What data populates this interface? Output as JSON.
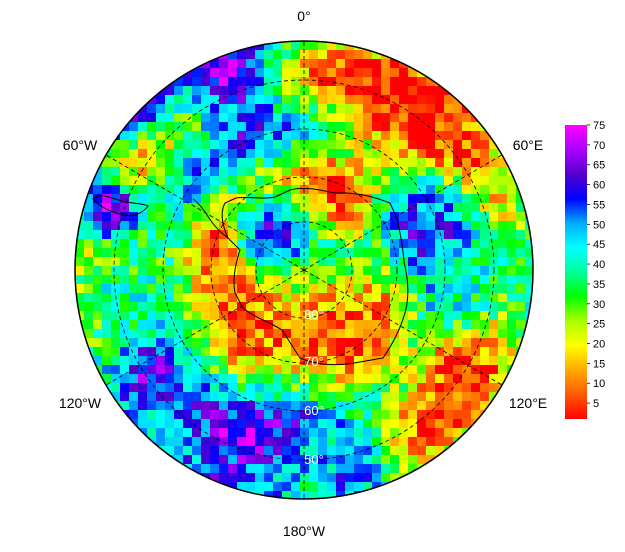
{
  "map": {
    "longitude_labels": {
      "top": "0°",
      "upper_left": "60°W",
      "upper_right": "60°E",
      "lower_left": "120°W",
      "lower_right": "120°E",
      "bottom": "180°W"
    },
    "latitude_labels": [
      "80°",
      "70°",
      "60°",
      "50°"
    ],
    "colorbar": {
      "min": 1,
      "max": 75,
      "ticks": [
        "75",
        "70",
        "65",
        "60",
        "55",
        "50",
        "45",
        "40",
        "35",
        "30",
        "25",
        "20",
        "15",
        "10",
        "5"
      ],
      "colors": [
        "#ff0000",
        "#ff5a00",
        "#ffaa00",
        "#ffff00",
        "#aaff00",
        "#00ff00",
        "#00ff99",
        "#00ffff",
        "#00aaff",
        "#0000ff",
        "#5500cc",
        "#aa00ff",
        "#ff00ff"
      ]
    }
  }
}
